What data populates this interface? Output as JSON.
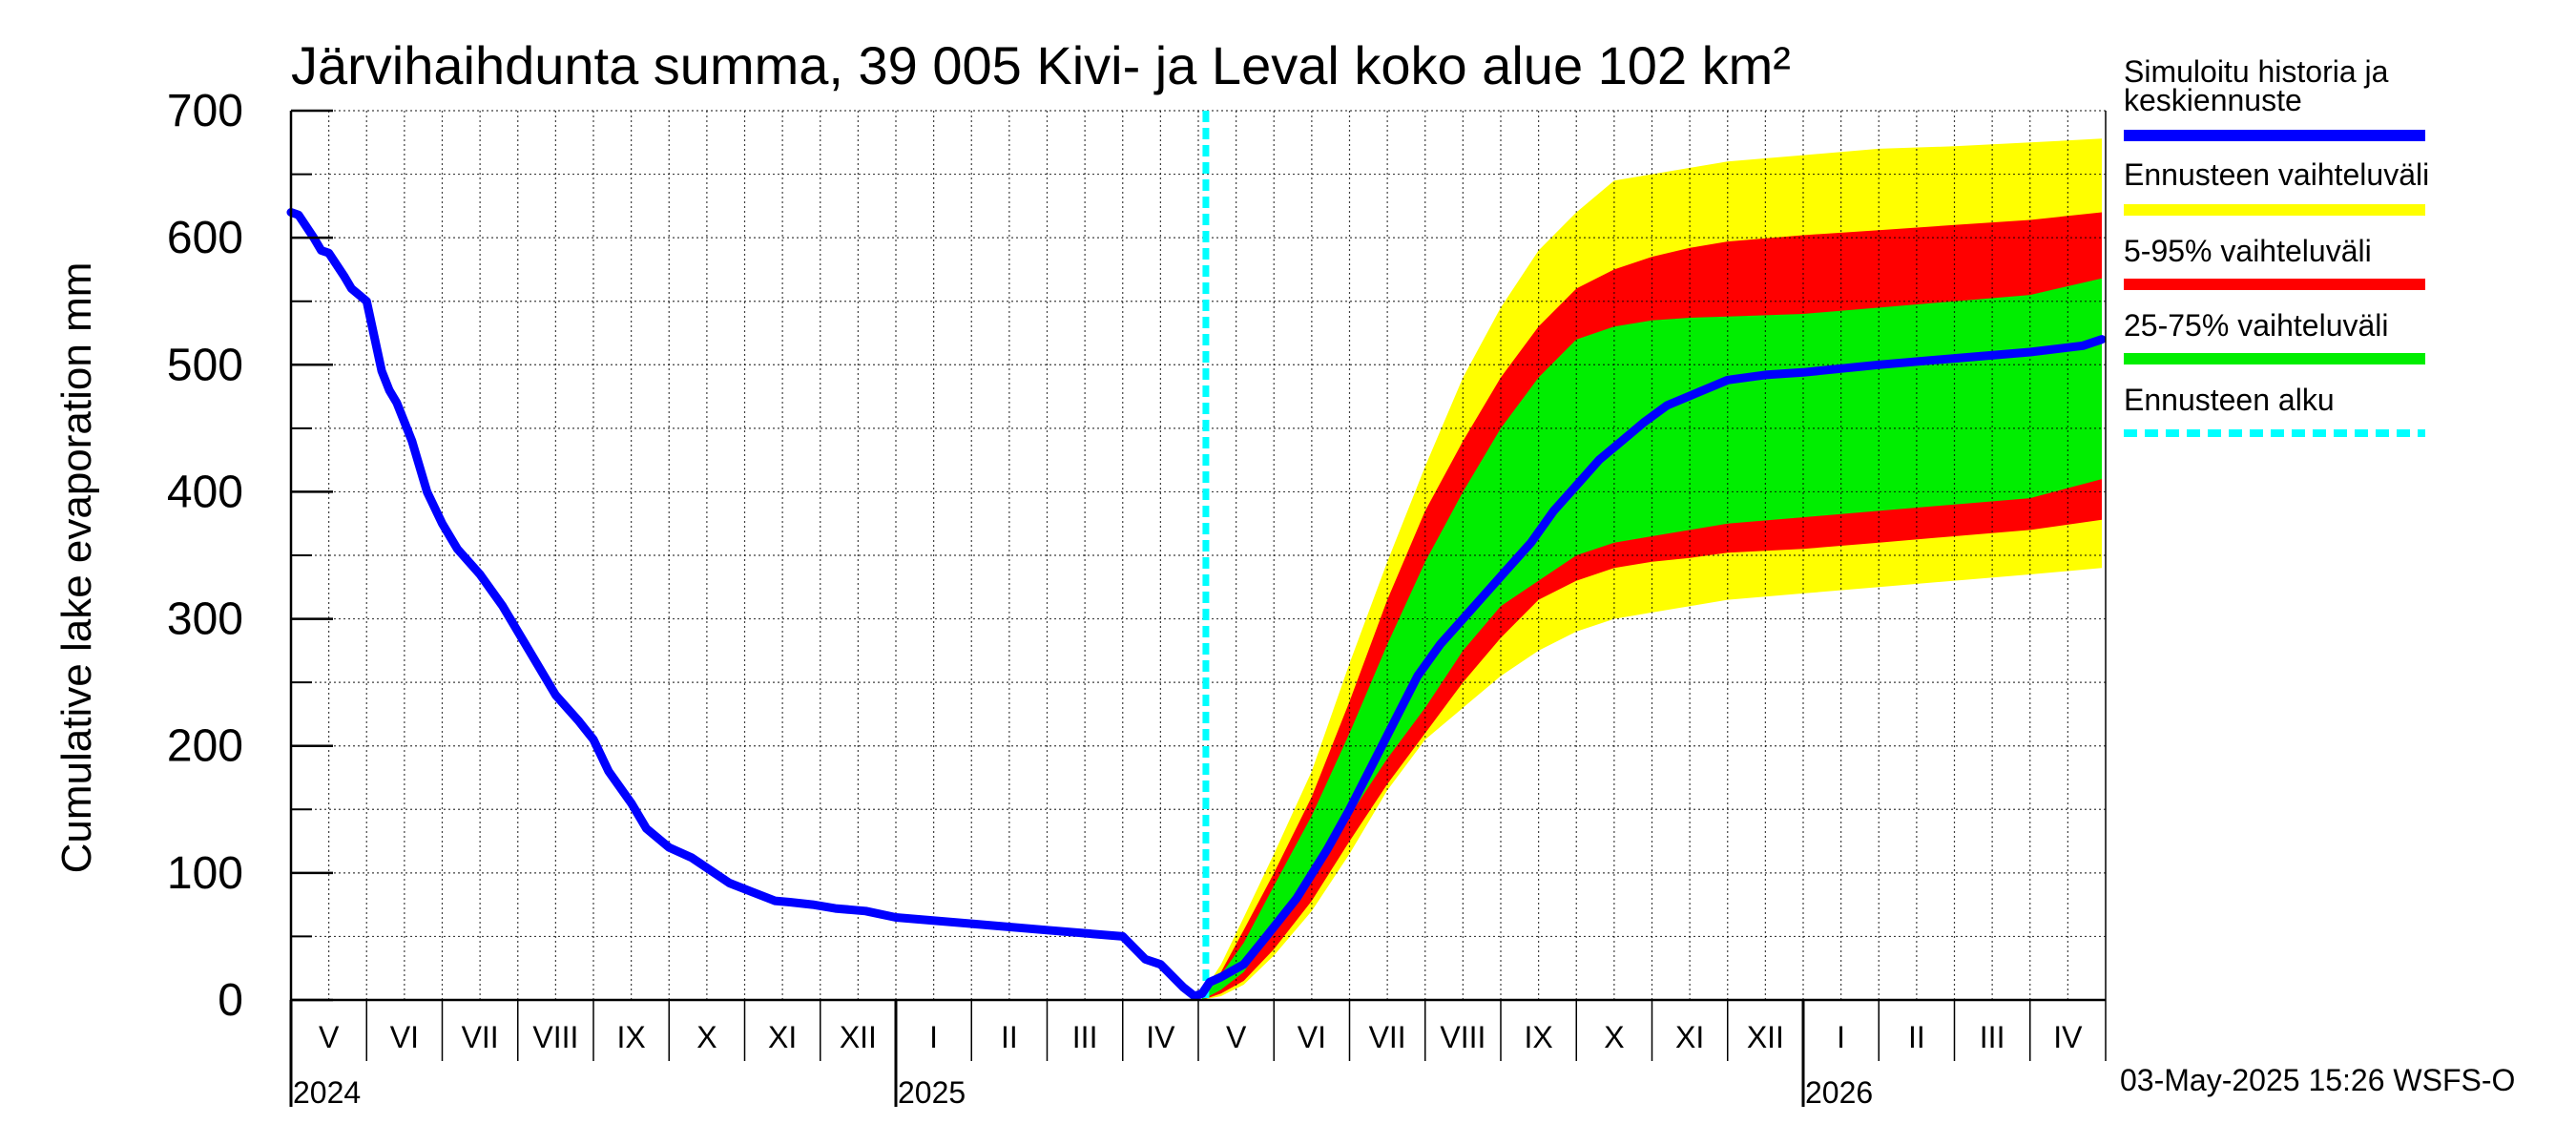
{
  "chart_data": {
    "type": "area",
    "title": "Järvihaihdunta summa, 39 005 Kivi- ja Leval koko alue 102 km²",
    "ylabel": "Cumulative lake evaporation   mm",
    "xlabel": "",
    "ylim": [
      0,
      700
    ],
    "yticks": [
      0,
      100,
      200,
      300,
      400,
      500,
      600,
      700
    ],
    "x_unit": "months since 2024-04-01",
    "xlim": [
      0,
      24
    ],
    "grid": true,
    "months": [
      "V",
      "VI",
      "VII",
      "VIII",
      "IX",
      "X",
      "XI",
      "XII",
      "I",
      "II",
      "III",
      "IV",
      "V",
      "VI",
      "VII",
      "VIII",
      "IX",
      "X",
      "XI",
      "XII",
      "I",
      "II",
      "III",
      "IV"
    ],
    "years": [
      {
        "label": "2024",
        "x": 0
      },
      {
        "label": "2025",
        "x": 8
      },
      {
        "label": "2026",
        "x": 20
      }
    ],
    "forecast_start": 12.1,
    "series": [
      {
        "name": "Simuloitu historia ja keskiennuste",
        "color": "#0000ff",
        "x": [
          0,
          0.1,
          0.3,
          0.4,
          0.5,
          0.7,
          0.8,
          1.0,
          1.2,
          1.3,
          1.4,
          1.6,
          1.8,
          2.0,
          2.2,
          2.5,
          2.8,
          3.1,
          3.5,
          3.8,
          4.0,
          4.2,
          4.5,
          4.7,
          5.0,
          5.3,
          5.6,
          5.8,
          6.1,
          6.4,
          6.6,
          6.9,
          7.2,
          7.6,
          8.0,
          9.0,
          10.0,
          11.0,
          11.3,
          11.5,
          11.8,
          11.95,
          12.05,
          12.15,
          12.3,
          12.6,
          12.9,
          13.3,
          13.7,
          14.0,
          14.3,
          14.6,
          14.9,
          15.2,
          15.5,
          15.8,
          16.1,
          16.4,
          16.7,
          17.0,
          17.3,
          17.6,
          17.9,
          18.2,
          18.6,
          19.0,
          19.5,
          20.0,
          21.0,
          22.0,
          23.0,
          23.7,
          23.95
        ],
        "y": [
          620,
          618,
          600,
          590,
          588,
          570,
          560,
          550,
          495,
          480,
          470,
          440,
          400,
          375,
          355,
          335,
          310,
          280,
          240,
          220,
          205,
          180,
          155,
          135,
          120,
          112,
          100,
          92,
          85,
          78,
          77,
          75,
          72,
          70,
          65,
          60,
          55,
          50,
          32,
          28,
          10,
          3,
          5,
          14,
          18,
          28,
          50,
          80,
          118,
          150,
          185,
          220,
          255,
          280,
          300,
          320,
          340,
          360,
          385,
          405,
          425,
          440,
          455,
          468,
          478,
          488,
          492,
          494,
          500,
          505,
          510,
          515,
          520
        ]
      }
    ],
    "bands": [
      {
        "name": "Ennusteen vaihteluväli",
        "color": "#ffff00",
        "x": [
          12.05,
          12.3,
          12.6,
          13.0,
          13.5,
          14.0,
          14.5,
          15.0,
          15.5,
          16.0,
          16.5,
          17.0,
          17.5,
          18.0,
          18.5,
          19.0,
          20.0,
          21.0,
          22.0,
          23.0,
          23.95
        ],
        "upper": [
          5,
          28,
          65,
          115,
          180,
          265,
          345,
          420,
          490,
          545,
          590,
          620,
          645,
          650,
          655,
          660,
          665,
          670,
          672,
          675,
          678
        ],
        "lower": [
          0,
          3,
          12,
          35,
          70,
          115,
          165,
          205,
          230,
          255,
          275,
          290,
          300,
          305,
          310,
          315,
          320,
          325,
          330,
          335,
          340
        ]
      },
      {
        "name": "5-95% vaihteluväli",
        "color": "#ff0000",
        "x": [
          12.05,
          12.3,
          12.6,
          13.0,
          13.5,
          14.0,
          14.5,
          15.0,
          15.5,
          16.0,
          16.5,
          17.0,
          17.5,
          18.0,
          18.5,
          19.0,
          20.0,
          21.0,
          22.0,
          23.0,
          23.95
        ],
        "upper": [
          5,
          22,
          55,
          100,
          160,
          235,
          315,
          385,
          440,
          490,
          530,
          560,
          575,
          585,
          592,
          597,
          602,
          606,
          610,
          614,
          620
        ],
        "lower": [
          0,
          5,
          15,
          40,
          78,
          125,
          170,
          210,
          250,
          285,
          315,
          330,
          340,
          345,
          348,
          352,
          355,
          360,
          365,
          370,
          378
        ]
      },
      {
        "name": "25-75% vaihteluväli",
        "color": "#00ee00",
        "x": [
          12.05,
          12.3,
          12.6,
          13.0,
          13.5,
          14.0,
          14.5,
          15.0,
          15.5,
          16.0,
          16.5,
          17.0,
          17.5,
          18.0,
          18.5,
          19.0,
          20.0,
          21.0,
          22.0,
          23.0,
          23.95
        ],
        "upper": [
          5,
          20,
          45,
          90,
          145,
          210,
          280,
          345,
          400,
          450,
          490,
          520,
          530,
          535,
          537,
          538,
          540,
          545,
          550,
          555,
          568
        ],
        "lower": [
          0,
          8,
          22,
          55,
          95,
          145,
          190,
          230,
          275,
          310,
          330,
          350,
          360,
          365,
          370,
          375,
          380,
          385,
          390,
          395,
          410
        ]
      }
    ],
    "legend": [
      {
        "label_line1": "Simuloitu historia ja",
        "label_line2": "keskiennuste",
        "color": "#0000ff",
        "style": "solid"
      },
      {
        "label_line1": "Ennusteen vaihteluväli",
        "label_line2": "",
        "color": "#ffff00",
        "style": "solid"
      },
      {
        "label_line1": "5-95% vaihteluväli",
        "label_line2": "",
        "color": "#ff0000",
        "style": "solid"
      },
      {
        "label_line1": "25-75% vaihteluväli",
        "label_line2": "",
        "color": "#00ee00",
        "style": "solid"
      },
      {
        "label_line1": "Ennusteen alku",
        "label_line2": "",
        "color": "#00ffff",
        "style": "dashed"
      }
    ],
    "footer": "03-May-2025 15:26 WSFS-O"
  }
}
